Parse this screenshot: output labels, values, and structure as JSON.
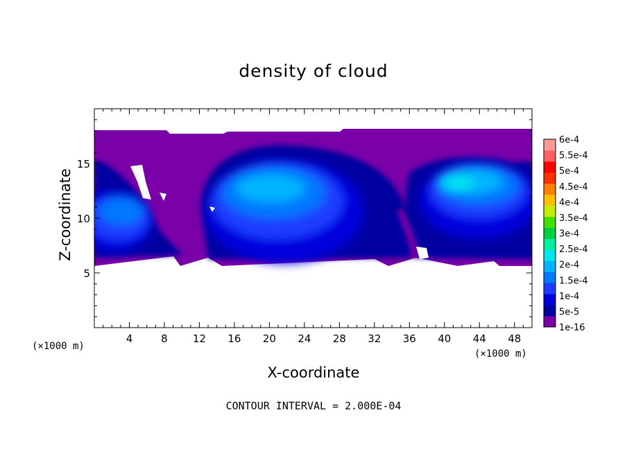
{
  "chart_data": {
    "type": "heatmap",
    "title": "density of cloud",
    "xlabel": "X-coordinate",
    "ylabel": "Z-coordinate",
    "x_unit_label": "(×1000 m)",
    "y_unit_label": "(×1000 m)",
    "xlim": [
      0,
      50
    ],
    "ylim": [
      0,
      20
    ],
    "x_ticks": [
      4,
      8,
      12,
      16,
      20,
      24,
      28,
      32,
      36,
      40,
      44,
      48
    ],
    "y_ticks": [
      5,
      10,
      15
    ],
    "footer": "CONTOUR INTERVAL = 2.000E-04",
    "colorbar": {
      "levels": [
        "1e-16",
        "5e-5",
        "1e-4",
        "1.5e-4",
        "2e-4",
        "2.5e-4",
        "3e-4",
        "3.5e-4",
        "4e-4",
        "4.5e-4",
        "5e-4",
        "5.5e-4",
        "6e-4"
      ],
      "colors": [
        "#7a00a8",
        "#0000a0",
        "#0000dd",
        "#1e3cff",
        "#0078ff",
        "#00b4ff",
        "#00e5f0",
        "#00f0a0",
        "#00d040",
        "#40e000",
        "#c0f000",
        "#ffc000",
        "#ff8000",
        "#ff3000",
        "#ff0000",
        "#ff6060",
        "#ff9999"
      ]
    },
    "cloud_layer": {
      "bottom_km": 5.8,
      "top_km": 17.8
    }
  }
}
